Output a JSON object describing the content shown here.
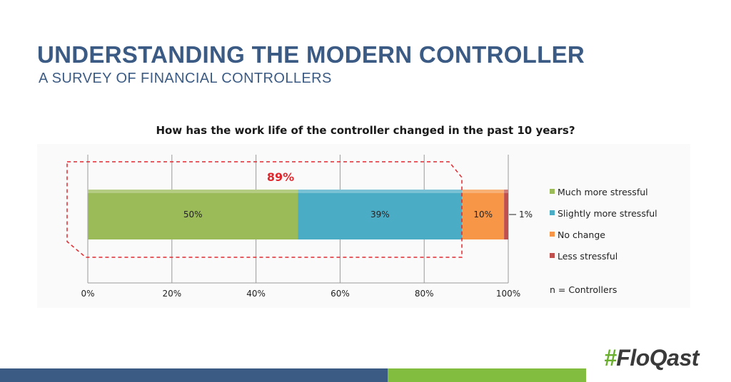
{
  "header": {
    "title": "UNDERSTANDING THE MODERN CONTROLLER",
    "subtitle": "A SURVEY OF FINANCIAL CONTROLLERS"
  },
  "chart_data": {
    "type": "bar",
    "orientation": "horizontal",
    "stacked": true,
    "title": "How has the work life of the controller changed in the past 10 years?",
    "series": [
      {
        "name": "Much more stressful",
        "value": 50,
        "label": "50%",
        "color": "#9bbb59"
      },
      {
        "name": "Slightly more stressful",
        "value": 39,
        "label": "39%",
        "color": "#4bacc6"
      },
      {
        "name": "No change",
        "value": 10,
        "label": "10%",
        "color": "#f79646"
      },
      {
        "name": "Less stressful",
        "value": 1,
        "label": "1%",
        "color": "#c0504d"
      }
    ],
    "xlim": [
      0,
      100
    ],
    "x_ticks": [
      "0%",
      "20%",
      "40%",
      "60%",
      "80%",
      "100%"
    ],
    "grid": true,
    "legend_position": "right",
    "annotation": "89%",
    "annotation_color": "#e0282e",
    "note": "n = Controllers"
  },
  "branding": {
    "logo_mark": "#",
    "logo_text": "FloQast",
    "footer_colors": [
      "#3b5b85",
      "#83bd3f"
    ]
  }
}
